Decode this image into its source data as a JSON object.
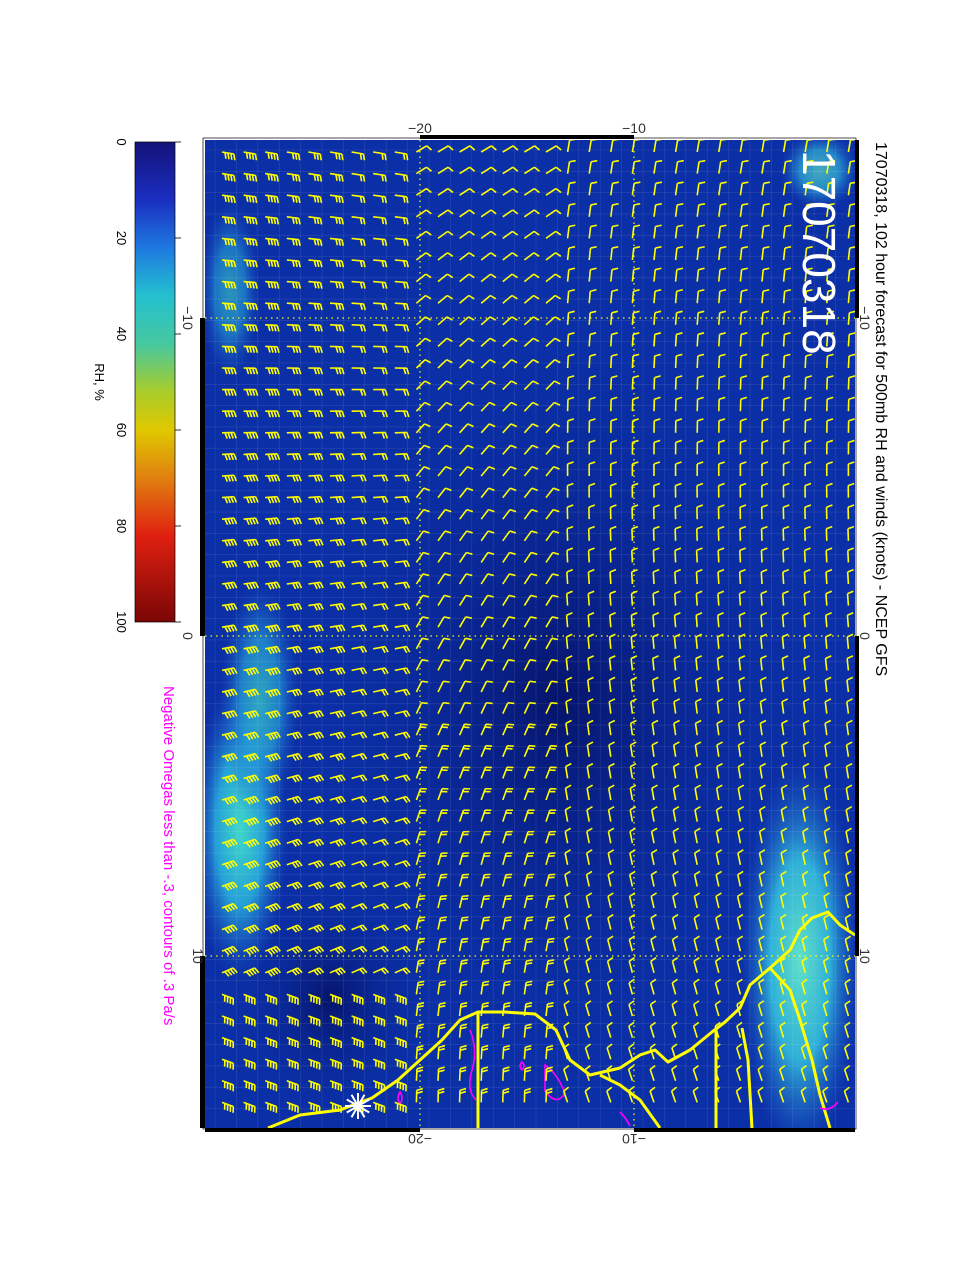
{
  "title": "17070318, 102 hour forecast for 500mb RH and winds (knots) - NCEP GFS",
  "stamp": "17070318",
  "note": "Negative Omegas less than -.3, contours of .3 Pa/s",
  "colorbar": {
    "label": "RH, %",
    "ticks": [
      "0",
      "20",
      "40",
      "60",
      "80",
      "100"
    ]
  },
  "axes": {
    "lat_ticks_outer": [
      "−10",
      "0",
      "10"
    ],
    "lat_ticks_inner": [
      "−10",
      "0",
      "10"
    ],
    "lon_ticks_top": [
      "−20",
      "−10"
    ],
    "lon_ticks_bottom": [
      "−20",
      "−10"
    ]
  },
  "colors": {
    "field_base": "#0a2ea8",
    "field_dark": "#061c78",
    "field_light": "#1f66d8",
    "moist": "#2fb6d8",
    "barbs": "#ffff00",
    "coast": "#ffff00",
    "omega": "#ff00ff",
    "stamp": "#ffffff"
  },
  "icons": [
    "wind-barb-icon",
    "sun-marker-icon"
  ]
}
